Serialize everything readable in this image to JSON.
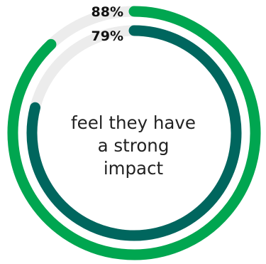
{
  "chart_data": {
    "type": "radial-bar",
    "center_label_lines": [
      "feel they have",
      "a strong",
      "impact"
    ],
    "max": 100,
    "series": [
      {
        "value": 88,
        "label": "88%",
        "color": "#00a650"
      },
      {
        "value": 79,
        "label": "79%",
        "color": "#00665e"
      }
    ],
    "track_color": "#ececec"
  }
}
